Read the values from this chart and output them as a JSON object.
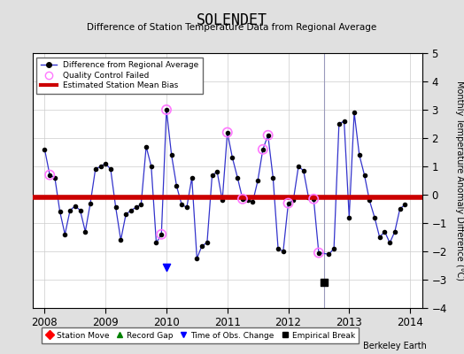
{
  "title": "SOLENDET",
  "subtitle": "Difference of Station Temperature Data from Regional Average",
  "ylabel": "Monthly Temperature Anomaly Difference (°C)",
  "credit": "Berkeley Earth",
  "xlim": [
    2007.8,
    2014.2
  ],
  "ylim": [
    -4,
    5
  ],
  "yticks": [
    -4,
    -3,
    -2,
    -1,
    0,
    1,
    2,
    3,
    4,
    5
  ],
  "xticks": [
    2008,
    2009,
    2010,
    2011,
    2012,
    2013,
    2014
  ],
  "bias": -0.1,
  "bias_color": "#cc0000",
  "line_color": "#3333cc",
  "background_color": "#e0e0e0",
  "plot_bg_color": "#ffffff",
  "vertical_line_x": 2012.583,
  "empirical_break_x": 2012.583,
  "empirical_break_y": -3.1,
  "time_of_obs_x": 2010.0,
  "time_of_obs_y": -2.55,
  "data_x": [
    2008.0,
    2008.083,
    2008.167,
    2008.25,
    2008.333,
    2008.417,
    2008.5,
    2008.583,
    2008.667,
    2008.75,
    2008.833,
    2008.917,
    2009.0,
    2009.083,
    2009.167,
    2009.25,
    2009.333,
    2009.417,
    2009.5,
    2009.583,
    2009.667,
    2009.75,
    2009.833,
    2009.917,
    2010.0,
    2010.083,
    2010.167,
    2010.25,
    2010.333,
    2010.417,
    2010.5,
    2010.583,
    2010.667,
    2010.75,
    2010.833,
    2010.917,
    2011.0,
    2011.083,
    2011.167,
    2011.25,
    2011.333,
    2011.417,
    2011.5,
    2011.583,
    2011.667,
    2011.75,
    2011.833,
    2011.917,
    2012.0,
    2012.083,
    2012.167,
    2012.25,
    2012.333,
    2012.417,
    2012.5,
    2012.667,
    2012.75,
    2012.833,
    2012.917,
    2013.0,
    2013.083,
    2013.167,
    2013.25,
    2013.333,
    2013.417,
    2013.5,
    2013.583,
    2013.667,
    2013.75,
    2013.833,
    2013.917
  ],
  "data_y": [
    1.6,
    0.7,
    0.6,
    -0.6,
    -1.4,
    -0.55,
    -0.4,
    -0.55,
    -1.3,
    -0.3,
    0.9,
    1.0,
    1.1,
    0.9,
    -0.45,
    -1.6,
    -0.7,
    -0.55,
    -0.45,
    -0.35,
    1.7,
    1.0,
    -1.7,
    -1.4,
    3.0,
    1.4,
    0.3,
    -0.35,
    -0.45,
    0.6,
    -2.25,
    -1.8,
    -1.7,
    0.7,
    0.8,
    -0.2,
    2.2,
    1.3,
    0.6,
    -0.15,
    -0.2,
    -0.25,
    0.5,
    1.6,
    2.1,
    0.6,
    -1.9,
    -2.0,
    -0.3,
    -0.2,
    1.0,
    0.85,
    -0.1,
    -0.15,
    -2.05,
    -2.1,
    -1.9,
    2.5,
    2.6,
    -0.8,
    2.9,
    1.4,
    0.7,
    -0.2,
    -0.8,
    -1.5,
    -1.3,
    -1.7,
    -1.3,
    -0.5,
    -0.35
  ],
  "qc_failed_x": [
    2008.083,
    2009.917,
    2010.0,
    2011.0,
    2011.25,
    2011.583,
    2011.667,
    2012.0,
    2012.417,
    2012.5
  ],
  "qc_failed_y": [
    0.7,
    -1.4,
    3.0,
    2.2,
    -0.15,
    1.6,
    2.1,
    -0.3,
    -0.15,
    -2.05
  ]
}
